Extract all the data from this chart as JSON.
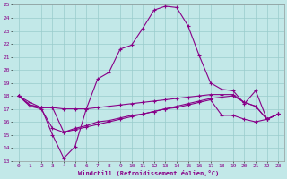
{
  "xlabel": "Windchill (Refroidissement éolien,°C)",
  "bg_color": "#c2e8e8",
  "grid_color": "#99cccc",
  "line_color": "#880088",
  "xlim": [
    -0.5,
    23.5
  ],
  "ylim": [
    13,
    25
  ],
  "xticks": [
    0,
    1,
    2,
    3,
    4,
    5,
    6,
    7,
    8,
    9,
    10,
    11,
    12,
    13,
    14,
    15,
    16,
    17,
    18,
    19,
    20,
    21,
    22,
    23
  ],
  "yticks": [
    13,
    14,
    15,
    16,
    17,
    18,
    19,
    20,
    21,
    22,
    23,
    24,
    25
  ],
  "line1_x": [
    0,
    1,
    2,
    3,
    4,
    5,
    6,
    7,
    8,
    9,
    10,
    11,
    12,
    13,
    14,
    15,
    16,
    17,
    18,
    19,
    20,
    21,
    22,
    23
  ],
  "line1_y": [
    18.0,
    17.5,
    17.1,
    15.0,
    13.2,
    14.1,
    17.0,
    19.3,
    19.8,
    21.6,
    21.9,
    23.2,
    24.6,
    24.9,
    24.8,
    23.4,
    21.1,
    19.0,
    18.5,
    18.4,
    17.4,
    18.4,
    16.2,
    16.6
  ],
  "line2_x": [
    0,
    1,
    2,
    3,
    4,
    5,
    6,
    7,
    8,
    9,
    10,
    11,
    12,
    13,
    14,
    15,
    16,
    17,
    18,
    19,
    20,
    21,
    22,
    23
  ],
  "line2_y": [
    18.0,
    17.3,
    17.1,
    17.1,
    17.0,
    17.0,
    17.0,
    17.1,
    17.2,
    17.3,
    17.4,
    17.5,
    17.6,
    17.7,
    17.8,
    17.9,
    18.0,
    18.1,
    18.1,
    18.1,
    17.5,
    17.2,
    16.2,
    16.6
  ],
  "line3_x": [
    0,
    1,
    2,
    3,
    4,
    5,
    6,
    7,
    8,
    9,
    10,
    11,
    12,
    13,
    14,
    15,
    16,
    17,
    18,
    19,
    20,
    21,
    22,
    23
  ],
  "line3_y": [
    18.0,
    17.3,
    17.1,
    17.1,
    15.2,
    15.5,
    15.7,
    16.0,
    16.1,
    16.3,
    16.5,
    16.6,
    16.8,
    17.0,
    17.2,
    17.4,
    17.6,
    17.8,
    17.9,
    18.0,
    17.5,
    17.2,
    16.2,
    16.6
  ],
  "line4_x": [
    0,
    1,
    2,
    3,
    4,
    5,
    6,
    7,
    8,
    9,
    10,
    11,
    12,
    13,
    14,
    15,
    16,
    17,
    18,
    19,
    20,
    21,
    22,
    23
  ],
  "line4_y": [
    18.0,
    17.2,
    17.0,
    15.5,
    15.2,
    15.4,
    15.6,
    15.8,
    16.0,
    16.2,
    16.4,
    16.6,
    16.8,
    17.0,
    17.1,
    17.3,
    17.5,
    17.7,
    16.5,
    16.5,
    16.2,
    16.0,
    16.2,
    16.6
  ]
}
